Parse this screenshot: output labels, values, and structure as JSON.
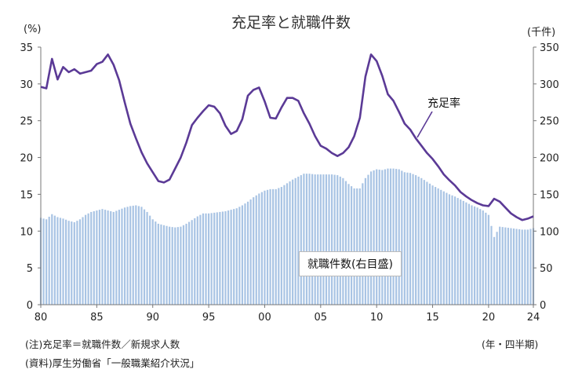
{
  "title": "充足率と就職件数",
  "units": {
    "left": "(%)",
    "right": "(千件)"
  },
  "notes": [
    "(注)充足率＝就職件数／新規求人数",
    "(資料)厚生労働省「一般職業紹介状況」"
  ],
  "period_label": "(年・四半期)",
  "chart_data": {
    "type": "bar+line",
    "x_ticks": [
      "80",
      "85",
      "90",
      "95",
      "00",
      "05",
      "10",
      "15",
      "20",
      "24"
    ],
    "left_axis": {
      "label": "(%)",
      "ticks": [
        "0",
        "5",
        "10",
        "15",
        "20",
        "25",
        "30",
        "35"
      ],
      "range": [
        0,
        35
      ]
    },
    "right_axis": {
      "label": "(千件)",
      "ticks": [
        "0",
        "50",
        "100",
        "150",
        "200",
        "250",
        "300",
        "350"
      ],
      "range": [
        0,
        350
      ]
    },
    "x_range": [
      1980.0,
      2024.0
    ],
    "grid": false,
    "series": [
      {
        "name": "充足率",
        "kind": "line",
        "axis": "left",
        "color": "#5b3a96",
        "points": [
          [
            1980.0,
            29.6
          ],
          [
            1980.5,
            29.4
          ],
          [
            1981.0,
            33.4
          ],
          [
            1981.5,
            30.6
          ],
          [
            1982.0,
            32.3
          ],
          [
            1982.5,
            31.6
          ],
          [
            1983.0,
            32.0
          ],
          [
            1983.5,
            31.4
          ],
          [
            1984.0,
            31.6
          ],
          [
            1984.5,
            31.8
          ],
          [
            1985.0,
            32.7
          ],
          [
            1985.5,
            33.0
          ],
          [
            1986.0,
            34.0
          ],
          [
            1986.5,
            32.6
          ],
          [
            1987.0,
            30.5
          ],
          [
            1987.5,
            27.5
          ],
          [
            1988.0,
            24.6
          ],
          [
            1988.5,
            22.6
          ],
          [
            1989.0,
            20.7
          ],
          [
            1989.5,
            19.2
          ],
          [
            1990.0,
            18.0
          ],
          [
            1990.5,
            16.8
          ],
          [
            1991.0,
            16.6
          ],
          [
            1991.5,
            17.0
          ],
          [
            1992.0,
            18.5
          ],
          [
            1992.5,
            20.0
          ],
          [
            1993.0,
            22.0
          ],
          [
            1993.5,
            24.4
          ],
          [
            1994.0,
            25.4
          ],
          [
            1994.5,
            26.3
          ],
          [
            1995.0,
            27.1
          ],
          [
            1995.5,
            26.9
          ],
          [
            1996.0,
            26.0
          ],
          [
            1996.5,
            24.3
          ],
          [
            1997.0,
            23.2
          ],
          [
            1997.5,
            23.6
          ],
          [
            1998.0,
            25.2
          ],
          [
            1998.5,
            28.4
          ],
          [
            1999.0,
            29.2
          ],
          [
            1999.5,
            29.5
          ],
          [
            2000.0,
            27.6
          ],
          [
            2000.5,
            25.4
          ],
          [
            2001.0,
            25.3
          ],
          [
            2001.5,
            26.8
          ],
          [
            2002.0,
            28.1
          ],
          [
            2002.5,
            28.1
          ],
          [
            2003.0,
            27.7
          ],
          [
            2003.5,
            26.0
          ],
          [
            2004.0,
            24.6
          ],
          [
            2004.5,
            22.9
          ],
          [
            2005.0,
            21.6
          ],
          [
            2005.5,
            21.2
          ],
          [
            2006.0,
            20.6
          ],
          [
            2006.5,
            20.2
          ],
          [
            2007.0,
            20.6
          ],
          [
            2007.5,
            21.4
          ],
          [
            2008.0,
            22.9
          ],
          [
            2008.5,
            25.4
          ],
          [
            2009.0,
            31.0
          ],
          [
            2009.5,
            34.0
          ],
          [
            2010.0,
            33.1
          ],
          [
            2010.5,
            31.1
          ],
          [
            2011.0,
            28.6
          ],
          [
            2011.5,
            27.7
          ],
          [
            2012.0,
            26.2
          ],
          [
            2012.5,
            24.6
          ],
          [
            2013.0,
            23.8
          ],
          [
            2013.5,
            22.6
          ],
          [
            2014.0,
            21.6
          ],
          [
            2014.5,
            20.6
          ],
          [
            2015.0,
            19.8
          ],
          [
            2015.5,
            18.8
          ],
          [
            2016.0,
            17.7
          ],
          [
            2016.5,
            16.9
          ],
          [
            2017.0,
            16.2
          ],
          [
            2017.5,
            15.3
          ],
          [
            2018.0,
            14.7
          ],
          [
            2018.5,
            14.2
          ],
          [
            2019.0,
            13.8
          ],
          [
            2019.5,
            13.5
          ],
          [
            2020.0,
            13.4
          ],
          [
            2020.5,
            14.4
          ],
          [
            2021.0,
            14.0
          ],
          [
            2021.5,
            13.2
          ],
          [
            2022.0,
            12.4
          ],
          [
            2022.5,
            11.9
          ],
          [
            2023.0,
            11.5
          ],
          [
            2023.5,
            11.7
          ],
          [
            2024.0,
            12.0
          ]
        ]
      },
      {
        "name": "就職件数(右目盛)",
        "kind": "bar",
        "axis": "right",
        "color": "#a9c4e4",
        "points": [
          [
            1980.0,
            118
          ],
          [
            1980.5,
            116
          ],
          [
            1981.0,
            123
          ],
          [
            1981.5,
            119
          ],
          [
            1982.0,
            117
          ],
          [
            1982.5,
            114
          ],
          [
            1983.0,
            112
          ],
          [
            1983.5,
            116
          ],
          [
            1984.0,
            122
          ],
          [
            1984.5,
            126
          ],
          [
            1985.0,
            128
          ],
          [
            1985.5,
            130
          ],
          [
            1986.0,
            128
          ],
          [
            1986.5,
            126
          ],
          [
            1987.0,
            129
          ],
          [
            1987.5,
            132
          ],
          [
            1988.0,
            134
          ],
          [
            1988.5,
            135
          ],
          [
            1989.0,
            133
          ],
          [
            1989.5,
            126
          ],
          [
            1990.0,
            116
          ],
          [
            1990.5,
            110
          ],
          [
            1991.0,
            108
          ],
          [
            1991.5,
            106
          ],
          [
            1992.0,
            105
          ],
          [
            1992.5,
            106
          ],
          [
            1993.0,
            110
          ],
          [
            1993.5,
            115
          ],
          [
            1994.0,
            120
          ],
          [
            1994.5,
            124
          ],
          [
            1995.0,
            124
          ],
          [
            1995.5,
            125
          ],
          [
            1996.0,
            126
          ],
          [
            1996.5,
            127
          ],
          [
            1997.0,
            129
          ],
          [
            1997.5,
            131
          ],
          [
            1998.0,
            135
          ],
          [
            1998.5,
            140
          ],
          [
            1999.0,
            146
          ],
          [
            1999.5,
            151
          ],
          [
            2000.0,
            155
          ],
          [
            2000.5,
            157
          ],
          [
            2001.0,
            157
          ],
          [
            2001.5,
            160
          ],
          [
            2002.0,
            165
          ],
          [
            2002.5,
            170
          ],
          [
            2003.0,
            174
          ],
          [
            2003.5,
            178
          ],
          [
            2004.0,
            178
          ],
          [
            2004.5,
            177
          ],
          [
            2005.0,
            177
          ],
          [
            2005.5,
            177
          ],
          [
            2006.0,
            177
          ],
          [
            2006.5,
            176
          ],
          [
            2007.0,
            172
          ],
          [
            2007.5,
            164
          ],
          [
            2008.0,
            158
          ],
          [
            2008.5,
            158
          ],
          [
            2009.0,
            172
          ],
          [
            2009.5,
            181
          ],
          [
            2010.0,
            184
          ],
          [
            2010.5,
            183
          ],
          [
            2011.0,
            185
          ],
          [
            2011.5,
            185
          ],
          [
            2012.0,
            184
          ],
          [
            2012.5,
            180
          ],
          [
            2013.0,
            179
          ],
          [
            2013.5,
            176
          ],
          [
            2014.0,
            172
          ],
          [
            2014.5,
            167
          ],
          [
            2015.0,
            162
          ],
          [
            2015.5,
            158
          ],
          [
            2016.0,
            154
          ],
          [
            2016.5,
            150
          ],
          [
            2017.0,
            147
          ],
          [
            2017.5,
            143
          ],
          [
            2018.0,
            139
          ],
          [
            2018.5,
            135
          ],
          [
            2019.0,
            132
          ],
          [
            2019.5,
            128
          ],
          [
            2020.0,
            122
          ],
          [
            2020.5,
            92
          ],
          [
            2021.0,
            106
          ],
          [
            2021.5,
            105
          ],
          [
            2022.0,
            104
          ],
          [
            2022.5,
            103
          ],
          [
            2023.0,
            102
          ],
          [
            2023.5,
            102
          ],
          [
            2024.0,
            104
          ]
        ]
      }
    ]
  }
}
